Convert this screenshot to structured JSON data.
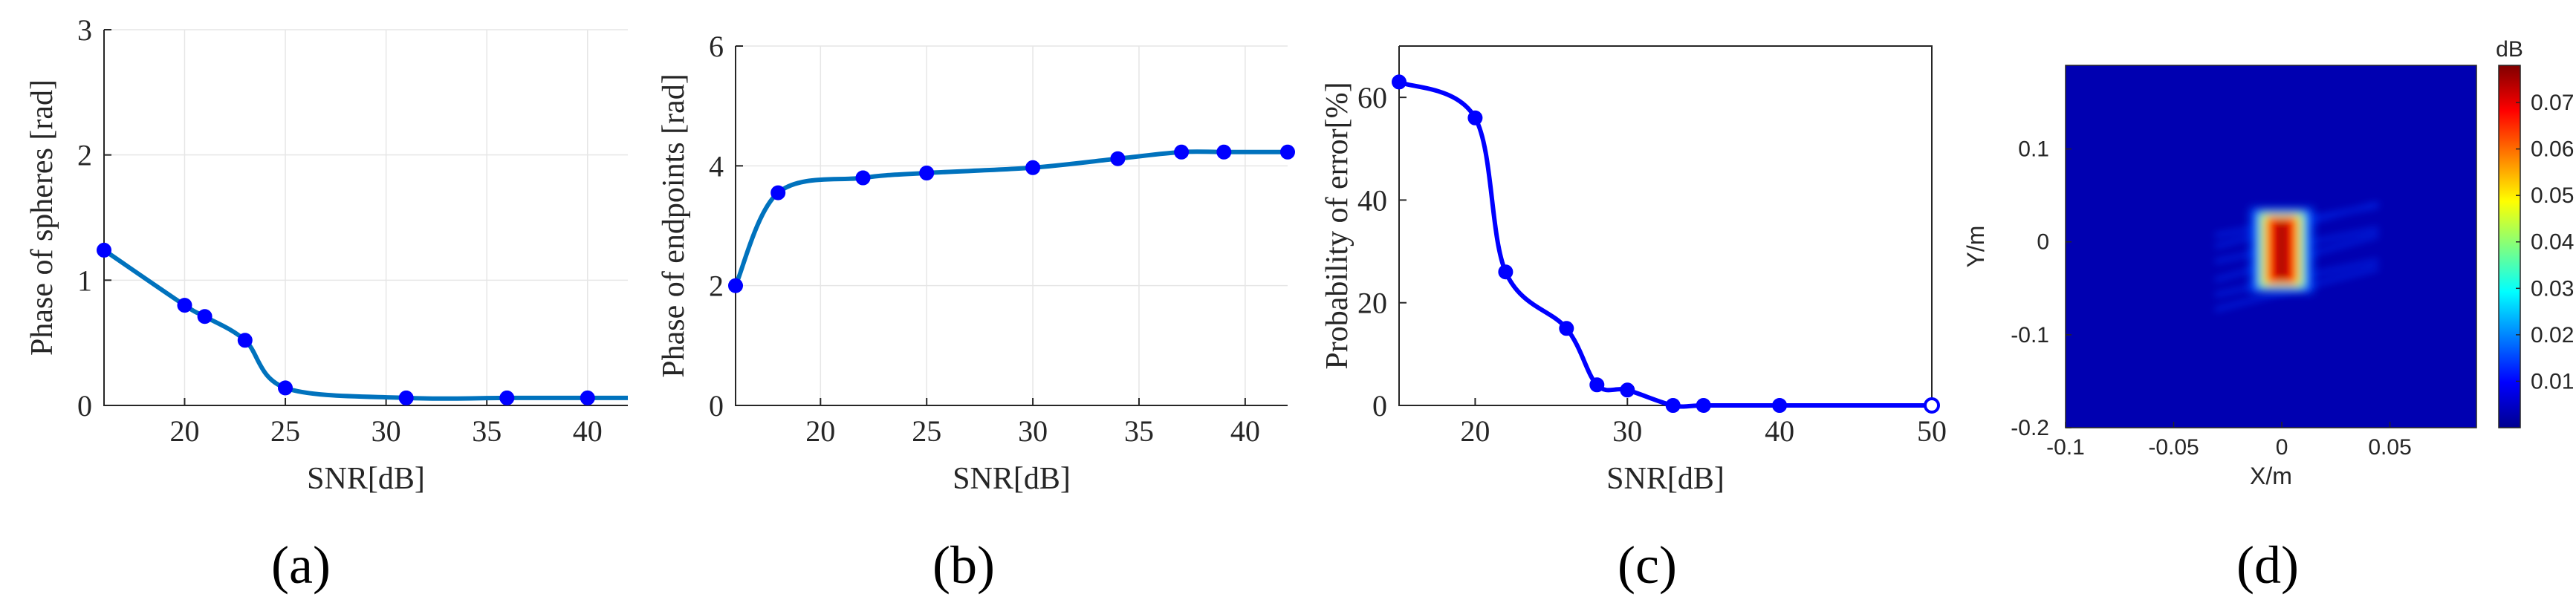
{
  "chart_data": [
    {
      "id": "a",
      "type": "line",
      "panel_label": "(a)",
      "title": "",
      "xlabel": "SNR[dB]",
      "ylabel": "Phase of spheres [rad]",
      "xlim": [
        16,
        42
      ],
      "ylim": [
        0,
        3
      ],
      "xticks": [
        20,
        25,
        30,
        35,
        40
      ],
      "yticks": [
        0,
        1,
        2,
        3
      ],
      "grid": true,
      "line_color": "#0072BD",
      "marker_color": "#0000FF",
      "x": [
        16,
        20,
        21,
        23,
        25,
        31,
        36,
        40
      ],
      "y": [
        1.24,
        0.8,
        0.71,
        0.52,
        0.14,
        0.06,
        0.06,
        0.06
      ],
      "curve_end": [
        42,
        0.06
      ]
    },
    {
      "id": "b",
      "type": "line",
      "panel_label": "(b)",
      "title": "",
      "xlabel": "SNR[dB]",
      "ylabel": "Phase of endpoints [rad]",
      "xlim": [
        16,
        42
      ],
      "ylim": [
        0,
        6
      ],
      "xticks": [
        20,
        25,
        30,
        35,
        40
      ],
      "yticks": [
        0,
        2,
        4,
        6
      ],
      "grid": true,
      "line_color": "#0072BD",
      "marker_color": "#0000FF",
      "x": [
        16,
        18,
        22,
        25,
        30,
        34,
        37,
        39,
        42
      ],
      "y": [
        2.0,
        3.55,
        3.8,
        3.88,
        3.97,
        4.12,
        4.23,
        4.23,
        4.23
      ],
      "curve_end": null
    },
    {
      "id": "c",
      "type": "line",
      "panel_label": "(c)",
      "title": "",
      "xlabel": "SNR[dB]",
      "ylabel": "Probability of error[%]",
      "xlim": [
        15,
        50
      ],
      "ylim": [
        0,
        70
      ],
      "xticks": [
        20,
        30,
        40,
        50
      ],
      "yticks": [
        0,
        20,
        40,
        60
      ],
      "grid": false,
      "line_color": "#0000FF",
      "marker_color": "#0000FF",
      "x": [
        15,
        20,
        22,
        26,
        28,
        30,
        33,
        35,
        40,
        50
      ],
      "y": [
        63,
        56,
        26,
        15,
        4,
        3,
        0,
        0,
        0,
        0
      ],
      "curve_end": null
    },
    {
      "id": "d",
      "type": "heatmap",
      "panel_label": "(d)",
      "title": "",
      "xlabel": "X/m",
      "ylabel": "Y/m",
      "colorbar_label": "dB",
      "xlim": [
        -0.1,
        0.09
      ],
      "ylim": [
        -0.2,
        0.19
      ],
      "xticks": [
        -0.1,
        -0.05,
        0,
        0.05
      ],
      "xtick_labels": [
        "-0.1",
        "-0.05",
        "0",
        "0.05"
      ],
      "yticks": [
        -0.2,
        -0.1,
        0,
        0.1
      ],
      "ytick_labels": [
        "-0.2",
        "-0.1",
        "0",
        "0.1"
      ],
      "colorbar_ticks": [
        0.01,
        0.02,
        0.03,
        0.04,
        0.05,
        0.06,
        0.07
      ],
      "colorbar_tick_labels": [
        "0.01",
        "0.02",
        "0.03",
        "0.04",
        "0.05",
        "0.06",
        "0.07"
      ],
      "color_range": [
        0,
        0.078
      ],
      "background_value": 0.003,
      "target": {
        "x_center": 0.0,
        "x_halfwidth": 0.007,
        "y_min": -0.048,
        "y_max": 0.03,
        "peak": 0.075
      },
      "colormap": "jet"
    }
  ]
}
